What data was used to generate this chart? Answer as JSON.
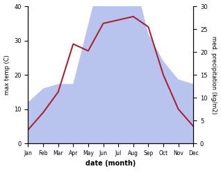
{
  "months": [
    "Jan",
    "Feb",
    "Mar",
    "Apr",
    "May",
    "Jun",
    "Jul",
    "Aug",
    "Sep",
    "Oct",
    "Nov",
    "Dec"
  ],
  "temperature": [
    4,
    9,
    15,
    29,
    27,
    35,
    36,
    37,
    34,
    20,
    10,
    5
  ],
  "precipitation_mm": [
    9,
    12,
    13,
    13,
    26,
    39,
    34,
    37,
    24,
    18,
    14,
    13
  ],
  "temp_color": "#aa2233",
  "precip_color_fill": "#b8c4ee",
  "temp_ylim": [
    0,
    40
  ],
  "precip_ylim": [
    0,
    30
  ],
  "xlabel": "date (month)",
  "ylabel_left": "max temp (C)",
  "ylabel_right": "med. precipitation (kg/m2)",
  "bg_color": "#ffffff",
  "temp_yticks": [
    0,
    10,
    20,
    30,
    40
  ],
  "precip_yticks": [
    0,
    5,
    10,
    15,
    20,
    25,
    30
  ]
}
